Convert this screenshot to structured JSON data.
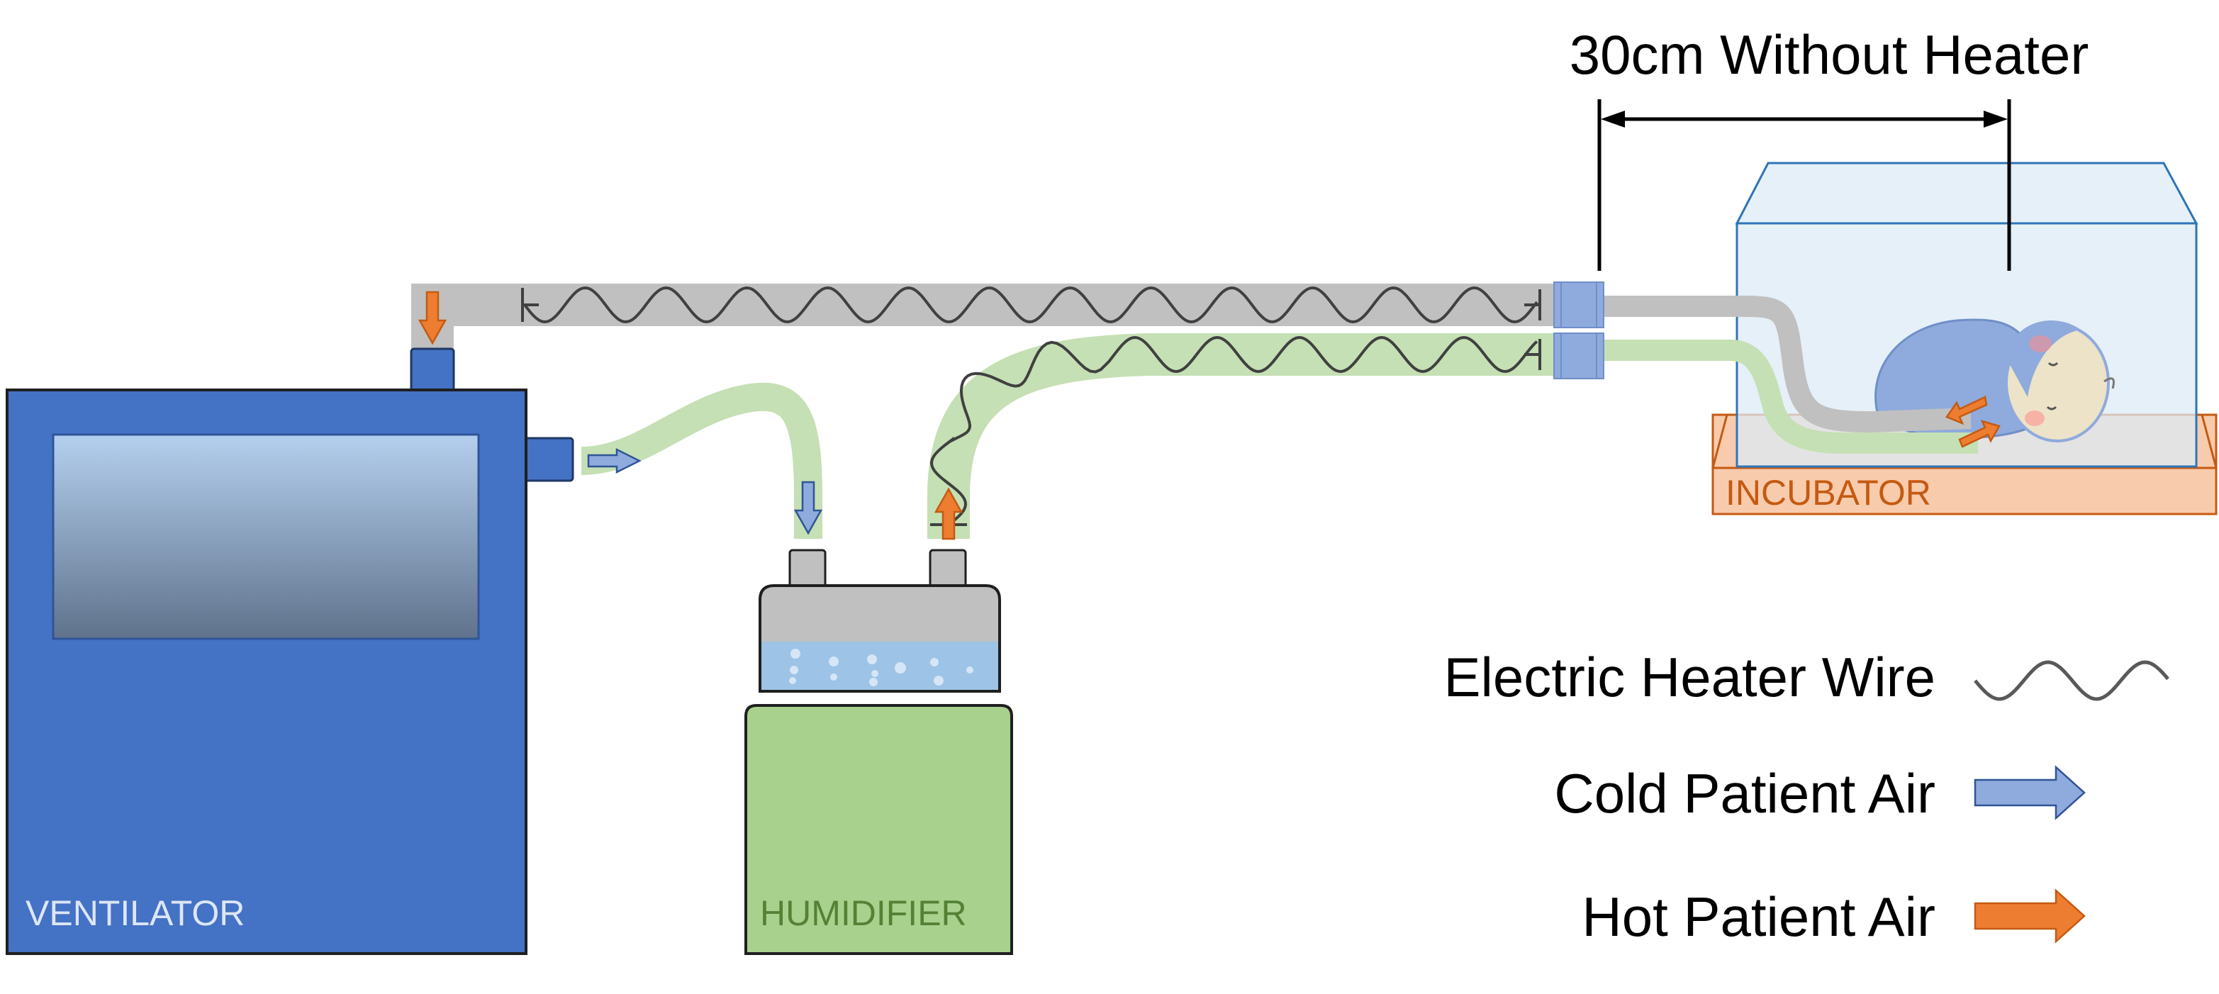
{
  "dimension": {
    "label": "30cm Without Heater"
  },
  "devices": {
    "ventilator": {
      "label": "VENTILATOR"
    },
    "humidifier": {
      "label": "HUMIDIFIER"
    },
    "incubator": {
      "label": "INCUBATOR"
    }
  },
  "legend": {
    "heater_wire": {
      "label": "Electric Heater Wire",
      "icon": "sine-wave-icon"
    },
    "cold_air": {
      "label": "Cold Patient Air",
      "icon": "arrow-right-icon"
    },
    "hot_air": {
      "label": "Hot Patient Air",
      "icon": "arrow-right-icon"
    }
  },
  "colors": {
    "ventilator_body": "#4472c4",
    "ventilator_label": "#dde6f5",
    "humidifier_body": "#a9d18e",
    "humidifier_label": "#548235",
    "water": "#9dc3e6",
    "incubator_base": "#f8cbad",
    "incubator_label": "#c55a11",
    "incubator_glass": "#2e75b6",
    "tube_heated": "#c0c0c0",
    "tube_inspiratory": "#c5e0b4",
    "connector": "#8faadc",
    "cold_arrow": "#8faadc",
    "hot_arrow": "#ed7d31",
    "heater_wire": "#404040",
    "baby_blanket": "#8faadc"
  }
}
